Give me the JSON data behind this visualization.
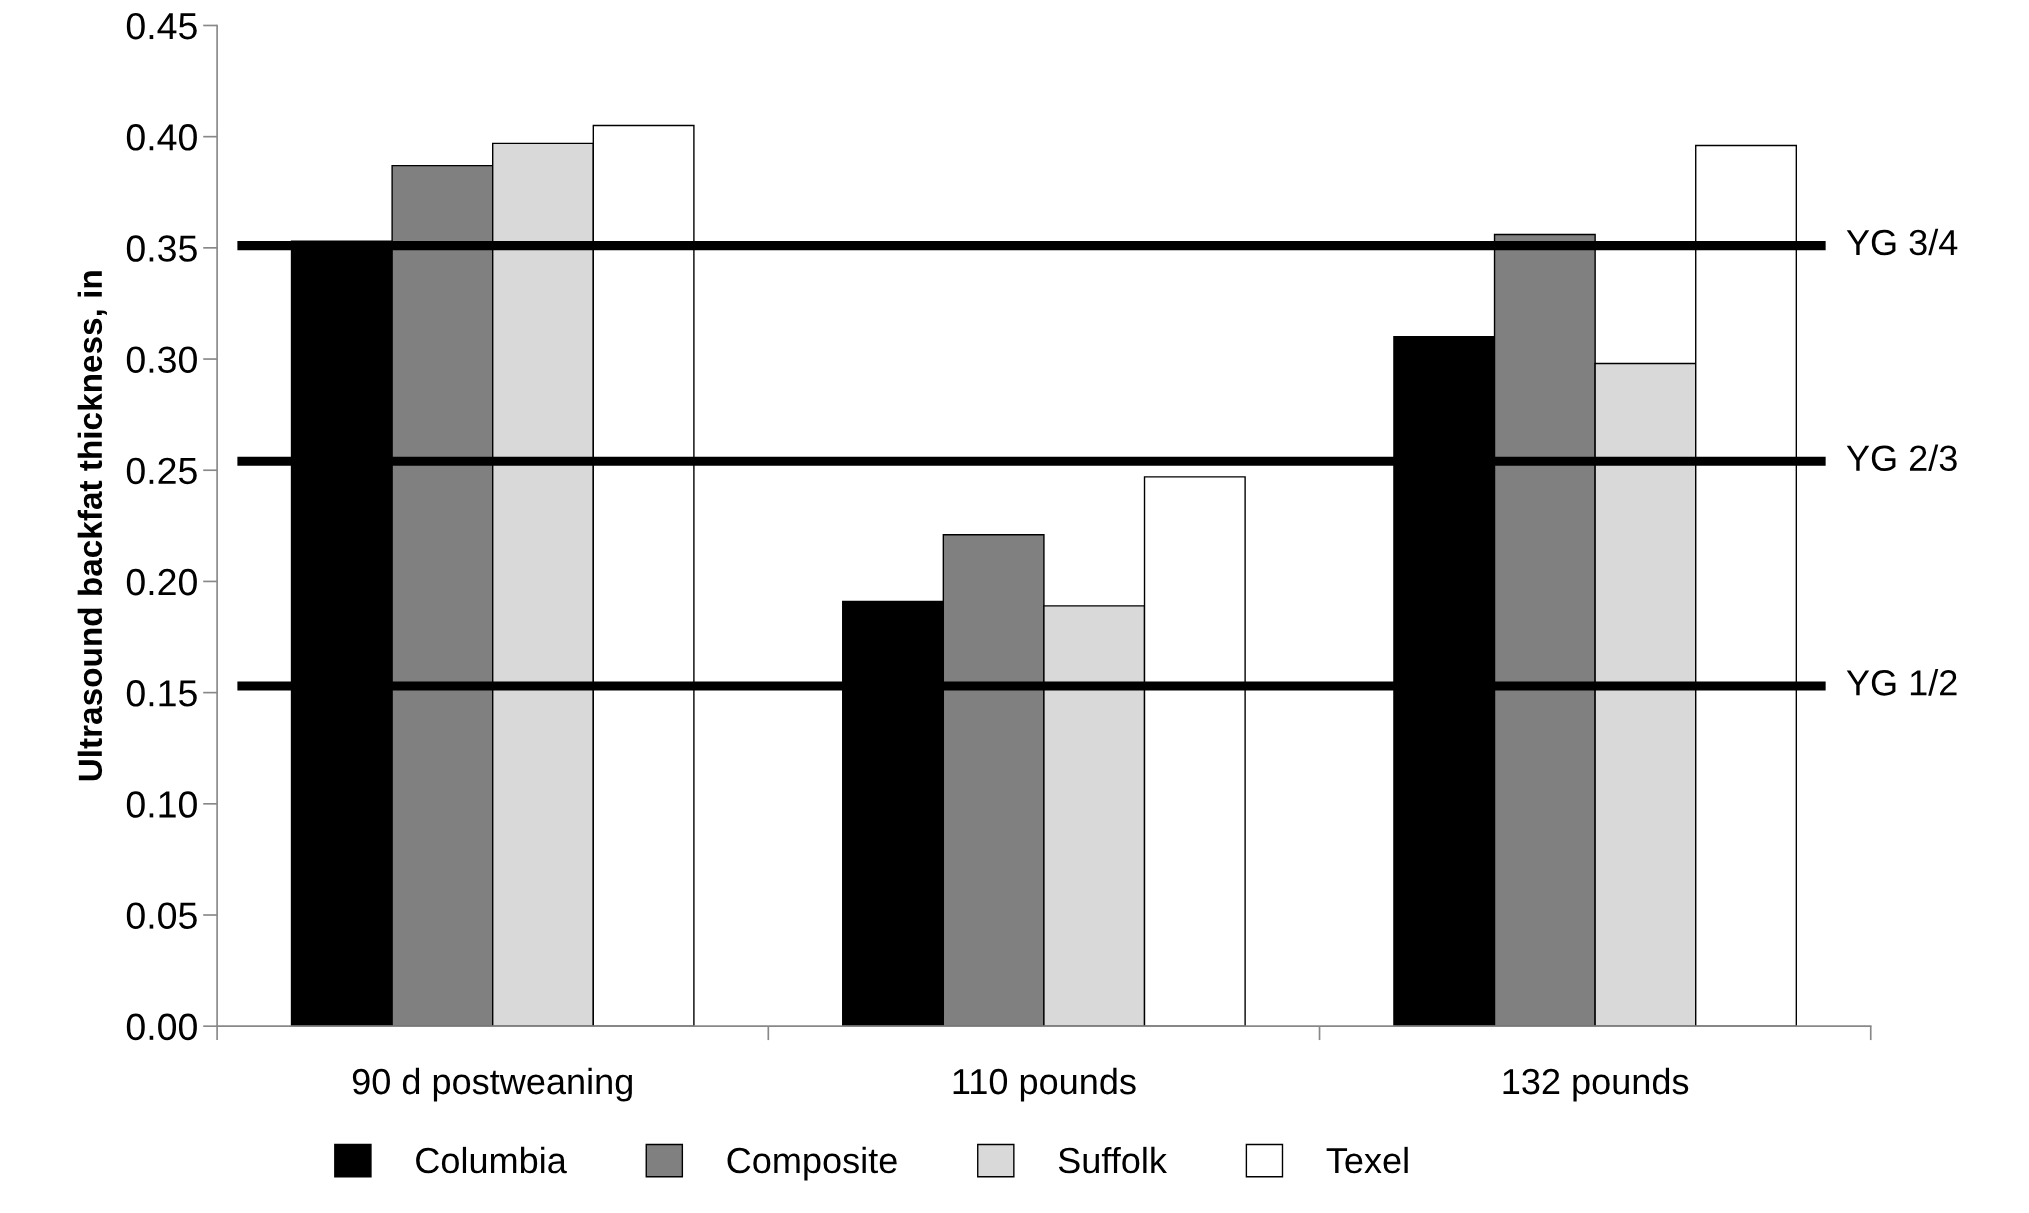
{
  "chart_data": {
    "type": "bar",
    "ylabel": "Ultrasound backfat thickness, in",
    "categories": [
      "90 d postweaning",
      "110 pounds",
      "132 pounds"
    ],
    "series": [
      {
        "name": "Columbia",
        "color": "#000000",
        "values": [
          0.353,
          0.191,
          0.31
        ]
      },
      {
        "name": "Composite",
        "color": "#808080",
        "values": [
          0.387,
          0.221,
          0.356
        ]
      },
      {
        "name": "Suffolk",
        "color": "#d9d9d9",
        "values": [
          0.397,
          0.189,
          0.298
        ]
      },
      {
        "name": "Texel",
        "color": "#ffffff",
        "values": [
          0.405,
          0.247,
          0.396
        ]
      }
    ],
    "ylim": [
      0,
      0.45
    ],
    "yticks": [
      {
        "value": 0,
        "label": "0.00"
      },
      {
        "value": 0.05,
        "label": "0.05"
      },
      {
        "value": 0.1,
        "label": "0.10"
      },
      {
        "value": 0.15,
        "label": "0.15"
      },
      {
        "value": 0.2,
        "label": "0.20"
      },
      {
        "value": 0.25,
        "label": "0.25"
      },
      {
        "value": 0.3,
        "label": "0.30"
      },
      {
        "value": 0.35,
        "label": "0.35"
      },
      {
        "value": 0.4,
        "label": "0.40"
      },
      {
        "value": 0.45,
        "label": "0.45"
      }
    ],
    "ref_lines": [
      {
        "axis": "y",
        "value": 0.351,
        "label": "YG 3/4",
        "color": "#000000"
      },
      {
        "axis": "y",
        "value": 0.254,
        "label": "YG 2/3",
        "color": "#000000"
      },
      {
        "axis": "y",
        "value": 0.153,
        "label": "YG 1/2",
        "color": "#000000"
      }
    ],
    "grid": false,
    "legend": "bottom"
  }
}
